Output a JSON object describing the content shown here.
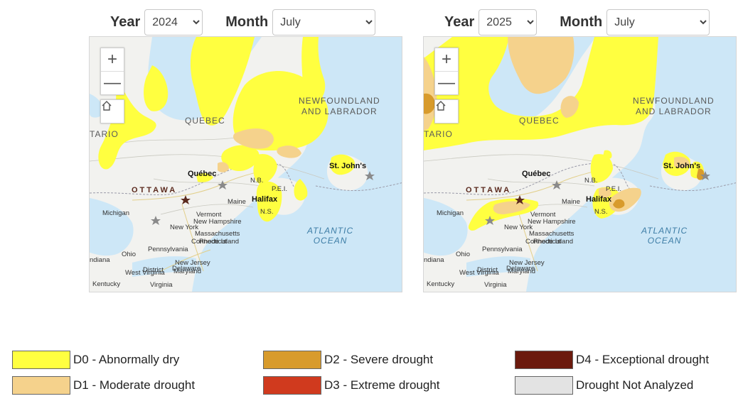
{
  "left": {
    "year_label": "Year",
    "year_value": "2024",
    "month_label": "Month",
    "month_value": "July"
  },
  "right": {
    "year_label": "Year",
    "year_value": "2025",
    "month_label": "Month",
    "month_value": "July"
  },
  "map_labels": {
    "quebec_prov": "QUEBEC",
    "newfoundland": "NEWFOUNDLAND",
    "labrador": "AND LABRADOR",
    "ontario": "TARIO",
    "quebec_city": "Québec",
    "st_johns": "St. John's",
    "ottawa": "OTTAWA",
    "nb": "N.B.",
    "pei": "P.E.I.",
    "maine": "Maine",
    "halifax": "Halifax",
    "ns": "N.S.",
    "michigan": "Michigan",
    "vermont": "Vermont",
    "new_hampshire": "New Hampshire",
    "new_york": "New York",
    "massachusetts": "Massachusetts",
    "connecticut": "Connecticut",
    "rhode_island": "Rhode Island",
    "ohio": "Ohio",
    "pennsylvania": "Pennsylvania",
    "indiana": "ndiana",
    "new_jersey": "New Jersey",
    "west_virginia": "West Virginia",
    "district": "District",
    "delaware": "Delaware",
    "maryland": "Maryland",
    "kentucky": "Kentucky",
    "virginia": "Virginia",
    "atlantic": "ATLANTIC",
    "ocean": "OCEAN"
  },
  "zoom": {
    "in_symbol": "+",
    "out_symbol": "—"
  },
  "legend": [
    {
      "label": "D0 - Abnormally dry",
      "color": "#ffff40"
    },
    {
      "label": "D1 - Moderate drought",
      "color": "#f5d28c"
    },
    {
      "label": "D2 - Severe drought",
      "color": "#d89b2c"
    },
    {
      "label": "D3 - Extreme drought",
      "color": "#d03a1e"
    },
    {
      "label": "D4 - Exceptional drought",
      "color": "#6b1a0e"
    },
    {
      "label": "Drought Not Analyzed",
      "color": "#e3e3e3"
    }
  ],
  "colors": {
    "water": "#cde7f7",
    "land": "#f2f2ef",
    "d0": "#ffff40",
    "d1": "#f5d28c",
    "d2": "#d89b2c"
  }
}
